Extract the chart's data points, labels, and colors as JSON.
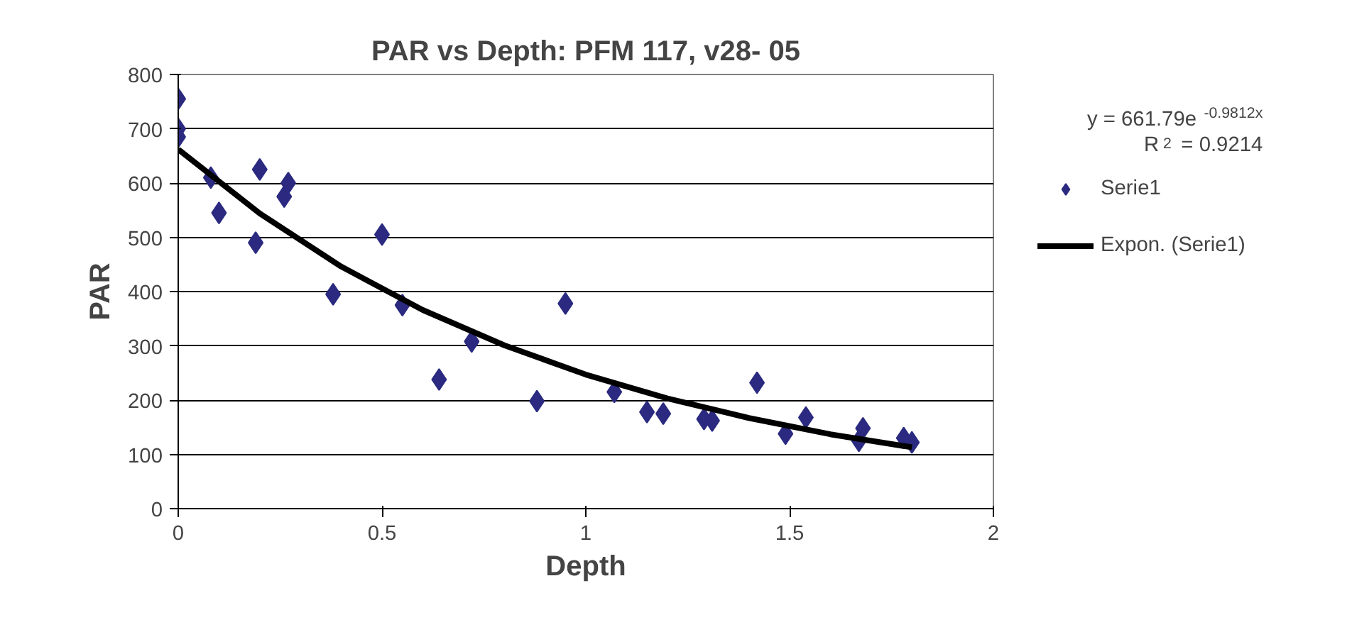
{
  "chart_data": {
    "type": "scatter",
    "title": "PAR vs Depth: PFM 117, v28- 05",
    "xlabel": "Depth",
    "ylabel": "PAR",
    "xlim": [
      0,
      2
    ],
    "xticks": [
      0,
      0.5,
      1,
      1.5,
      2
    ],
    "ylim": [
      0,
      800
    ],
    "yticks": [
      0,
      100,
      200,
      300,
      400,
      500,
      600,
      700,
      800
    ],
    "grid": "y",
    "legend": "right",
    "marker": "diamond",
    "annotations": [
      "y = 661.79e$^{-0.9812x}$",
      "R$^{2}$ = 0.9214"
    ],
    "series": [
      {
        "name": "Serie1",
        "color": "#2b2a80",
        "x": [
          0,
          0,
          0,
          0.08,
          0.1,
          0.2,
          0.19,
          0.26,
          0.27,
          0.38,
          0.5,
          0.55,
          0.64,
          0.72,
          0.88,
          0.95,
          1.07,
          1.15,
          1.19,
          1.29,
          1.31,
          1.42,
          1.49,
          1.54,
          1.67,
          1.68,
          1.78,
          1.8
        ],
        "values": [
          755,
          700,
          685,
          610,
          545,
          625,
          490,
          575,
          600,
          395,
          505,
          375,
          238,
          308,
          198,
          378,
          215,
          178,
          175,
          165,
          162,
          232,
          138,
          168,
          125,
          148,
          130,
          122
        ]
      },
      {
        "name": "Expon. (Serie1)",
        "type": "line",
        "color": "#000000",
        "line_style": "solid",
        "marker": "none",
        "x": [
          0,
          0.2,
          0.4,
          0.6,
          0.8,
          1.0,
          1.2,
          1.4,
          1.6,
          1.8
        ],
        "values": [
          662,
          544,
          446,
          366,
          301,
          247,
          203,
          167,
          137,
          113
        ]
      }
    ]
  }
}
